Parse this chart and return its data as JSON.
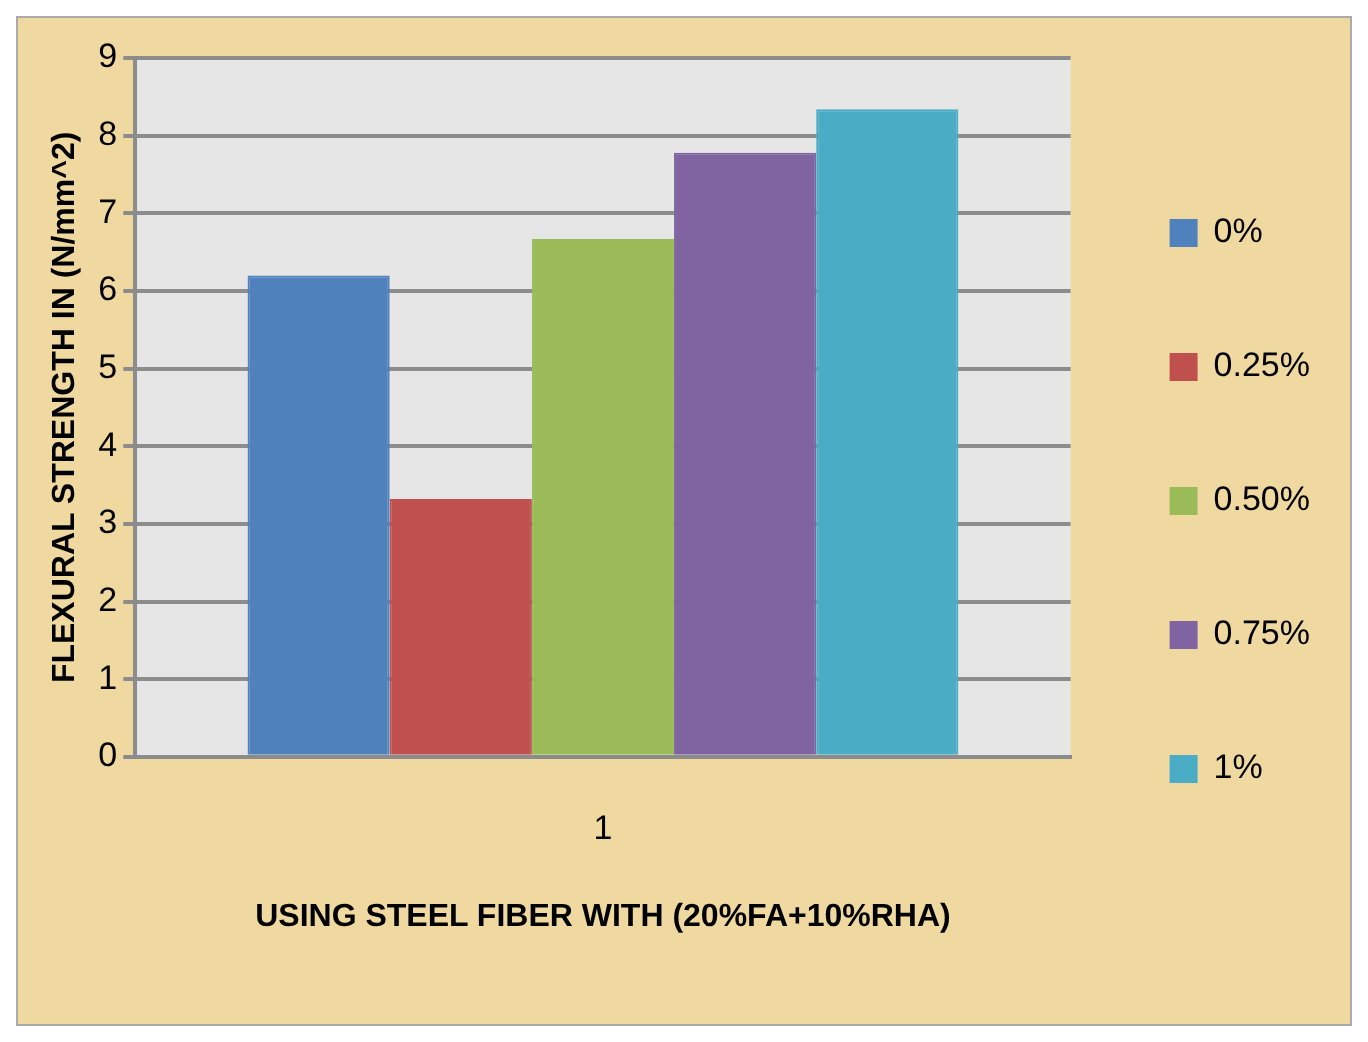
{
  "chart_data": {
    "type": "bar",
    "xlabel": "USING STEEL FIBER WITH (20%FA+10%RHA)",
    "ylabel": "FLEXURAL STRENGTH IN (N/mm^2)",
    "categories": [
      "1"
    ],
    "series": [
      {
        "name": "0%",
        "color": "#4f81bd",
        "values": [
          6.2
        ]
      },
      {
        "name": "0.25%",
        "color": "#c0504d",
        "values": [
          3.32
        ]
      },
      {
        "name": "0.50%",
        "color": "#9bbb59",
        "values": [
          6.67
        ]
      },
      {
        "name": "0.75%",
        "color": "#8064a2",
        "values": [
          7.78
        ]
      },
      {
        "name": "1%",
        "color": "#4bacc6",
        "values": [
          8.34
        ]
      }
    ],
    "ylim": [
      0,
      9
    ],
    "yticks": [
      0,
      1,
      2,
      3,
      4,
      5,
      6,
      7,
      8,
      9
    ],
    "grid": "y",
    "legend": "right"
  }
}
